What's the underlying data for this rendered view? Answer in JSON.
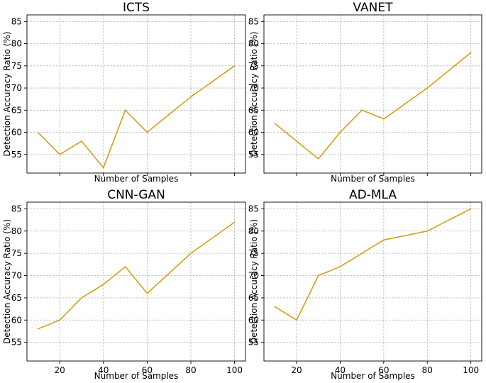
{
  "colors": {
    "line": "#d4a017",
    "grid": "#b0b0b0"
  },
  "chart_data": [
    {
      "type": "line",
      "title": "ICTS",
      "xlabel": "Number of Samples",
      "ylabel": "Detection Accuracy Ratio (%)",
      "x": [
        10,
        20,
        30,
        40,
        50,
        60,
        80,
        100
      ],
      "y": [
        60,
        55,
        58,
        52,
        65,
        60,
        68,
        75
      ],
      "xlim": [
        5,
        105
      ],
      "ylim": [
        50.8,
        86.5
      ],
      "xticks": [
        20,
        40,
        60,
        80,
        100
      ],
      "xticklabels": [
        "",
        "",
        "",
        "",
        ""
      ],
      "yticks": [
        55,
        60,
        65,
        70,
        75,
        80,
        85
      ],
      "grid": true
    },
    {
      "type": "line",
      "title": "VANET",
      "xlabel": "Number of Samples",
      "ylabel": "Detection Accuracy Ratio (%)",
      "x": [
        10,
        20,
        30,
        40,
        50,
        60,
        80,
        100
      ],
      "y": [
        62,
        58,
        54,
        60,
        65,
        63,
        70,
        78
      ],
      "xlim": [
        5,
        105
      ],
      "ylim": [
        50.8,
        86.5
      ],
      "xticks": [
        20,
        40,
        60,
        80,
        100
      ],
      "xticklabels": [
        "",
        "",
        "",
        "",
        ""
      ],
      "yticks": [
        55,
        60,
        65,
        70,
        75,
        80,
        85
      ],
      "grid": true
    },
    {
      "type": "line",
      "title": "CNN-GAN",
      "xlabel": "Number of Samples",
      "ylabel": "Detection Accuracy Ratio (%)",
      "x": [
        10,
        20,
        30,
        40,
        50,
        60,
        80,
        100
      ],
      "y": [
        58,
        60,
        65,
        68,
        72,
        66,
        75,
        82
      ],
      "xlim": [
        5,
        105
      ],
      "ylim": [
        50.8,
        86.5
      ],
      "xticks": [
        20,
        40,
        60,
        80,
        100
      ],
      "xticklabels": [
        "20",
        "40",
        "60",
        "80",
        "100"
      ],
      "yticks": [
        55,
        60,
        65,
        70,
        75,
        80,
        85
      ],
      "grid": true
    },
    {
      "type": "line",
      "title": "AD-MLA",
      "xlabel": "Number of Samples",
      "ylabel": "Detection Accuracy Ratio (%)",
      "x": [
        10,
        20,
        30,
        40,
        50,
        60,
        80,
        100
      ],
      "y": [
        63,
        60,
        70,
        72,
        75,
        78,
        80,
        85
      ],
      "xlim": [
        5,
        105
      ],
      "ylim": [
        50.8,
        86.5
      ],
      "xticks": [
        20,
        40,
        60,
        80,
        100
      ],
      "xticklabels": [
        "20",
        "40",
        "60",
        "80",
        "100"
      ],
      "yticks": [
        55,
        60,
        65,
        70,
        75,
        80,
        85
      ],
      "grid": true
    }
  ]
}
